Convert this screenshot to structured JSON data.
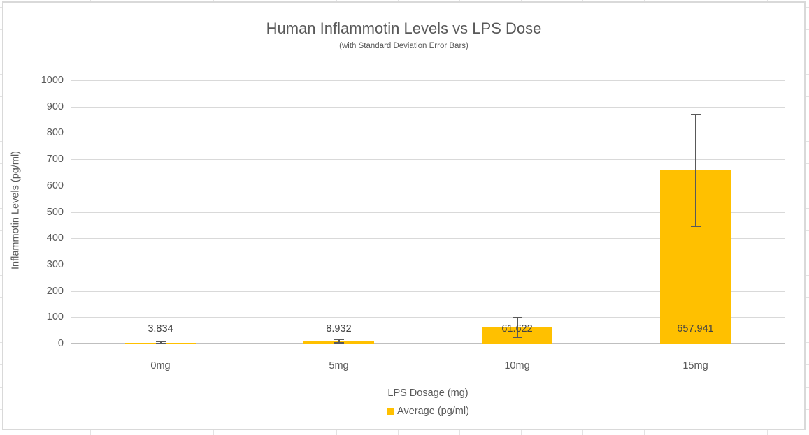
{
  "chart_data": {
    "type": "bar",
    "title": "Human Inflammotin Levels vs LPS Dose",
    "subtitle": "(with Standard Deviation Error Bars)",
    "xlabel": "LPS Dosage (mg)",
    "ylabel": "Inflammotin Levels (pg/ml)",
    "categories": [
      "0mg",
      "5mg",
      "10mg",
      "15mg"
    ],
    "series": [
      {
        "name": "Average (pg/ml)",
        "values": [
          3.834,
          8.932,
          61.622,
          657.941
        ],
        "color": "#FFC000"
      }
    ],
    "data_labels": [
      "3.834",
      "8.932",
      "61.622",
      "657.941"
    ],
    "error_bars": {
      "type": "standard_deviation",
      "values": [
        3,
        6,
        37,
        212
      ]
    },
    "ylim": [
      0,
      1000
    ],
    "ytick_step": 100,
    "ytick_labels": [
      "0",
      "100",
      "200",
      "300",
      "400",
      "500",
      "600",
      "700",
      "800",
      "900",
      "1000"
    ],
    "grid": "horizontal",
    "legend_position": "bottom",
    "colors": {
      "bar_fill": "#FFC000",
      "error_bar": "#595959",
      "gridline": "#D9D9D9",
      "axis_line": "#BFBFBF",
      "text": "#595959",
      "chart_border": "#D9D9D9"
    }
  }
}
